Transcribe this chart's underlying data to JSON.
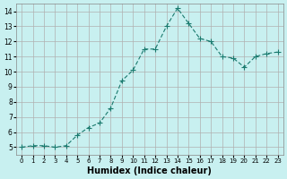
{
  "x": [
    0,
    1,
    2,
    3,
    4,
    5,
    6,
    7,
    8,
    9,
    10,
    11,
    12,
    13,
    14,
    15,
    16,
    17,
    18,
    19,
    20,
    21,
    22,
    23
  ],
  "y": [
    5.0,
    5.1,
    5.1,
    5.0,
    5.1,
    5.8,
    6.3,
    6.6,
    7.6,
    9.4,
    10.1,
    11.5,
    11.5,
    13.0,
    14.2,
    13.2,
    12.2,
    12.0,
    11.0,
    10.9,
    10.3,
    11.0,
    11.2,
    11.3
  ],
  "xlabel": "Humidex (Indice chaleur)",
  "ylabel": "",
  "title": "",
  "line_color": "#1a7a6e",
  "marker": "+",
  "bg_color": "#c8f0f0",
  "grid_color": "#b0b0b0",
  "xlim": [
    -0.5,
    23.5
  ],
  "ylim": [
    4.5,
    14.5
  ],
  "yticks": [
    5,
    6,
    7,
    8,
    9,
    10,
    11,
    12,
    13,
    14
  ],
  "xticks": [
    0,
    1,
    2,
    3,
    4,
    5,
    6,
    7,
    8,
    9,
    10,
    11,
    12,
    13,
    14,
    15,
    16,
    17,
    18,
    19,
    20,
    21,
    22,
    23
  ]
}
